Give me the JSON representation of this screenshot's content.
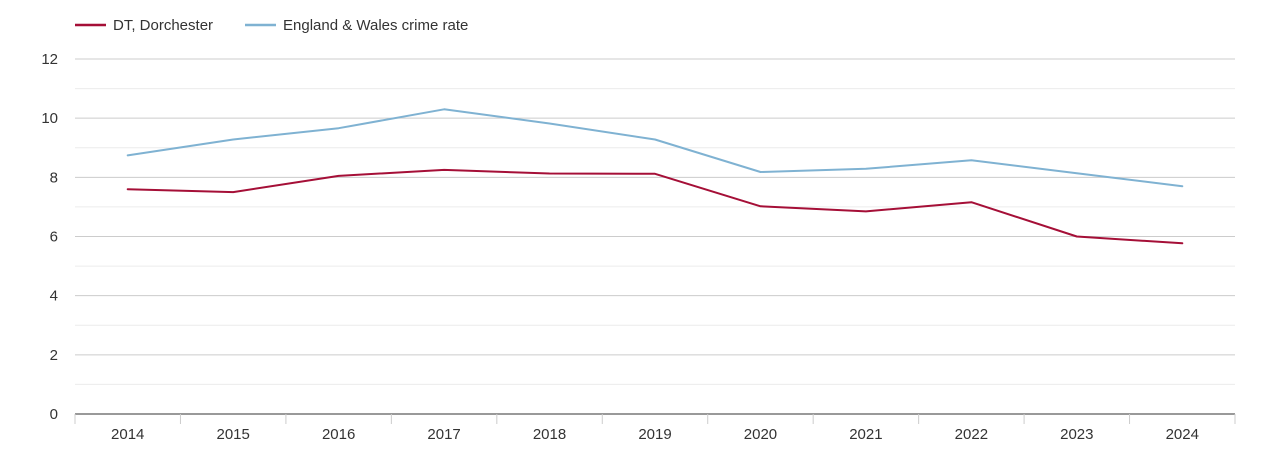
{
  "chart_data": {
    "type": "line",
    "title": "",
    "xlabel": "",
    "ylabel": "",
    "categories": [
      "2014",
      "2015",
      "2016",
      "2017",
      "2018",
      "2019",
      "2020",
      "2021",
      "2022",
      "2023",
      "2024"
    ],
    "y_ticks": [
      "0",
      "2",
      "4",
      "6",
      "8",
      "10",
      "12"
    ],
    "ylim": [
      0,
      12
    ],
    "grid": true,
    "legend_position": "top-left",
    "series": [
      {
        "name": "DT, Dorchester",
        "color": "#a50f37",
        "values": [
          7.6,
          7.5,
          8.05,
          8.25,
          8.13,
          8.12,
          7.02,
          6.85,
          7.16,
          6.0,
          5.77
        ]
      },
      {
        "name": "England & Wales crime rate",
        "color": "#7fb2d2",
        "values": [
          8.74,
          9.28,
          9.66,
          10.3,
          9.82,
          9.28,
          8.18,
          8.29,
          8.58,
          8.14,
          7.7
        ]
      }
    ]
  }
}
